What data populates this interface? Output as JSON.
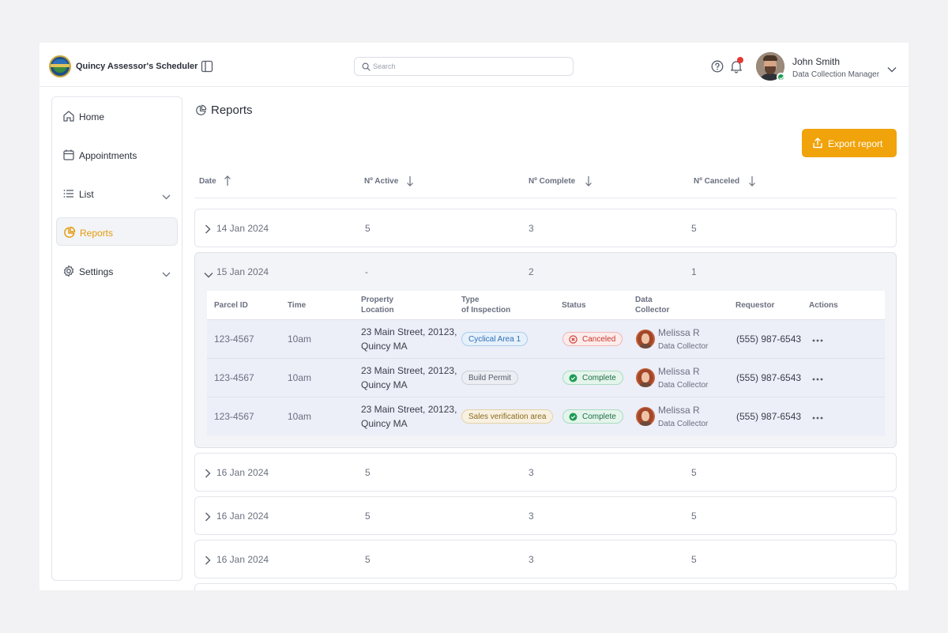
{
  "header": {
    "app_title": "Quincy Assessor's Scheduler",
    "search_placeholder": "Search",
    "search_value": "",
    "user": {
      "name": "John Smith",
      "role": "Data Collection Manager"
    }
  },
  "sidebar": {
    "items": [
      {
        "label": "Home",
        "icon": "home-icon",
        "active": false
      },
      {
        "label": "Appointments",
        "icon": "calendar-icon",
        "active": false
      },
      {
        "label": "List",
        "icon": "list-icon",
        "active": false,
        "expandable": true
      },
      {
        "label": "Reports",
        "icon": "pie-chart-icon",
        "active": true
      },
      {
        "label": "Settings",
        "icon": "gear-icon",
        "active": false,
        "expandable": true
      }
    ]
  },
  "main": {
    "title": "Reports",
    "export_label": "Export report",
    "columns": {
      "date": "Date",
      "active": "Nº Active",
      "complete": "Nº Complete",
      "canceled": "Nº Canceled"
    },
    "groups": [
      {
        "date": "14 Jan 2024",
        "active": "5",
        "complete": "3",
        "canceled": "5"
      },
      {
        "date": "15 Jan 2024",
        "active": "-",
        "complete": "2",
        "canceled": "1",
        "expanded": true
      },
      {
        "date": "16 Jan 2024",
        "active": "5",
        "complete": "3",
        "canceled": "5"
      },
      {
        "date": "16 Jan 2024",
        "active": "5",
        "complete": "3",
        "canceled": "5"
      },
      {
        "date": "16 Jan 2024",
        "active": "5",
        "complete": "3",
        "canceled": "5"
      }
    ],
    "detail": {
      "headers": {
        "parcel": "Parcel ID",
        "time": "Time",
        "location_1": "Property",
        "location_2": "Location",
        "type_1": "Type",
        "type_2": "of Inspection",
        "status": "Status",
        "collector_1": "Data",
        "collector_2": "Collector",
        "requestor": "Requestor",
        "actions": "Actions"
      },
      "rows": [
        {
          "parcel": "123-4567",
          "time": "10am",
          "address_1": "23 Main Street, 20123,",
          "address_2": "Quincy MA",
          "type": "Cyclical Area 1",
          "status": "Canceled",
          "collector": "Melissa R",
          "collector_role": "Data Collector",
          "requestor": "(555) 987-6543"
        },
        {
          "parcel": "123-4567",
          "time": "10am",
          "address_1": "23 Main Street, 20123,",
          "address_2": "Quincy MA",
          "type": "Build Permit",
          "status": "Complete",
          "collector": "Melissa R",
          "collector_role": "Data Collector",
          "requestor": "(555) 987-6543"
        },
        {
          "parcel": "123-4567",
          "time": "10am",
          "address_1": "23 Main Street, 20123,",
          "address_2": "Quincy MA",
          "type": "Sales verification area",
          "status": "Complete",
          "collector": "Melissa R",
          "collector_role": "Data Collector",
          "requestor": "(555) 987-6543"
        }
      ]
    }
  },
  "colors": {
    "accent": "#f0a30a",
    "active_nav_text": "#e39a0b",
    "canceled": "#c9352c",
    "complete": "#1e6e45",
    "notification": "#e53935"
  }
}
